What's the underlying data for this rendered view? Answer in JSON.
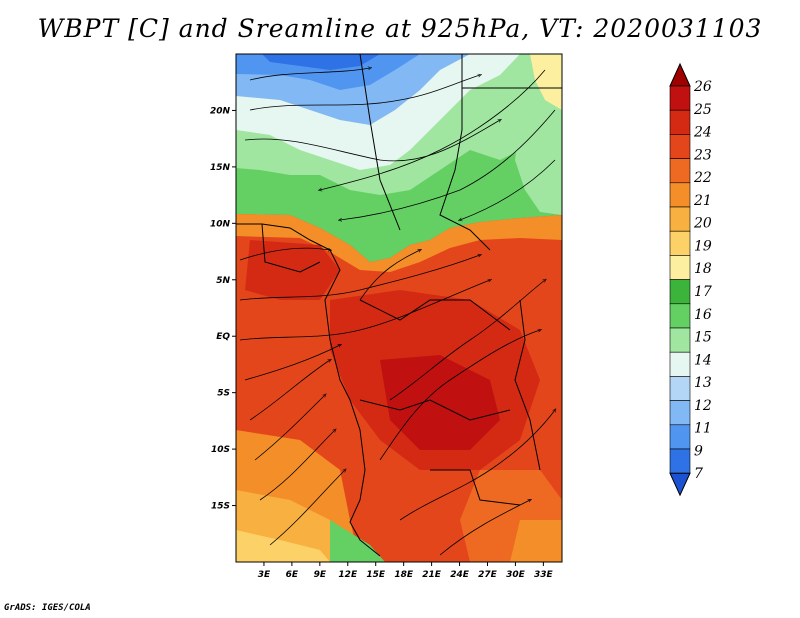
{
  "title": "WBPT [C] and Sreamline at 925hPa, VT: 2020031103",
  "footer": "GrADS: IGES/COLA",
  "map": {
    "lon_range": [
      0,
      35
    ],
    "lat_range": [
      -20,
      25
    ],
    "lat_ticks": [
      {
        "value": 20,
        "label": "20N"
      },
      {
        "value": 15,
        "label": "15N"
      },
      {
        "value": 10,
        "label": "10N"
      },
      {
        "value": 5,
        "label": "5N"
      },
      {
        "value": 0,
        "label": "EQ"
      },
      {
        "value": -5,
        "label": "5S"
      },
      {
        "value": -10,
        "label": "10S"
      },
      {
        "value": -15,
        "label": "15S"
      }
    ],
    "lon_ticks": [
      {
        "value": 3,
        "label": "3E"
      },
      {
        "value": 6,
        "label": "6E"
      },
      {
        "value": 9,
        "label": "9E"
      },
      {
        "value": 12,
        "label": "12E"
      },
      {
        "value": 15,
        "label": "15E"
      },
      {
        "value": 18,
        "label": "18E"
      },
      {
        "value": 21,
        "label": "21E"
      },
      {
        "value": 24,
        "label": "24E"
      },
      {
        "value": 27,
        "label": "27E"
      },
      {
        "value": 30,
        "label": "30E"
      },
      {
        "value": 33,
        "label": "33E"
      }
    ]
  },
  "colorbar": {
    "levels": [
      "26",
      "25",
      "24",
      "23",
      "22",
      "21",
      "20",
      "19",
      "18",
      "17",
      "16",
      "15",
      "14",
      "13",
      "12",
      "11",
      "9",
      "7"
    ],
    "colors": [
      "#a00000",
      "#c01010",
      "#d42a14",
      "#e4461c",
      "#ee6a22",
      "#f48e28",
      "#f8b040",
      "#fcd268",
      "#fcefa0",
      "#3cb43c",
      "#64d064",
      "#a0e6a0",
      "#e6f6f0",
      "#b4d6f6",
      "#82b8f4",
      "#5096f0",
      "#2e72e6",
      "#1a52d2"
    ]
  }
}
